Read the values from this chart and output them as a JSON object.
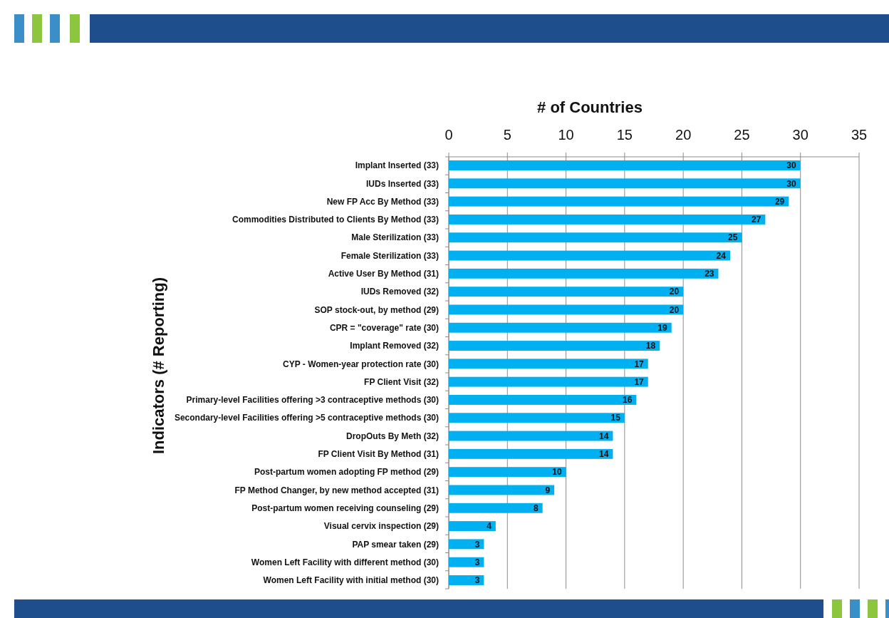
{
  "chart_data": {
    "type": "bar",
    "orientation": "horizontal",
    "xlabel": "# of Countries",
    "ylabel": "Indicators (# Reporting)",
    "categories": [
      "Implant Inserted (33)",
      "IUDs Inserted (33)",
      "New FP Acc By Method (33)",
      "Commodities Distributed to Clients By Method (33)",
      "Male Sterilization (33)",
      "Female Sterilization (33)",
      "Active User By Method (31)",
      "IUDs Removed (32)",
      "SOP stock-out, by method (29)",
      "CPR = \"coverage\" rate (30)",
      "Implant Removed (32)",
      "CYP - Women-year protection rate (30)",
      "FP Client Visit (32)",
      "Primary-level Facilities offering >3 contraceptive methods (30)",
      "Secondary-level Facilities offering >5 contraceptive methods (30)",
      "DropOuts By Meth (32)",
      "FP Client Visit By Method (31)",
      "Post-partum women adopting FP method (29)",
      "FP Method Changer, by new method accepted (31)",
      "Post-partum women receiving counseling (29)",
      "Visual cervix inspection (29)",
      "PAP smear taken (29)",
      "Women Left Facility with different method (30)",
      "Women Left Facility with initial method (30)"
    ],
    "values": [
      30,
      30,
      29,
      27,
      25,
      24,
      23,
      20,
      20,
      19,
      18,
      17,
      17,
      16,
      15,
      14,
      14,
      10,
      9,
      8,
      4,
      3,
      3,
      3
    ],
    "color": "#00b0f0",
    "xlim": [
      0,
      35
    ],
    "xticks": [
      0,
      5,
      10,
      15,
      20,
      25,
      30,
      35
    ],
    "grid": "x",
    "data_labels": true
  }
}
